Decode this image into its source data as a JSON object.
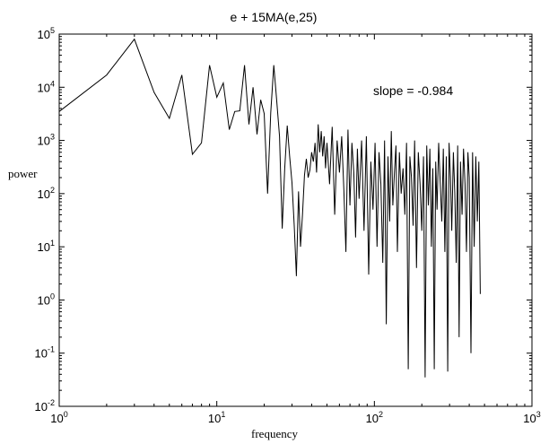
{
  "chart_data": {
    "type": "line",
    "title": "e + 15MA(e,25)",
    "xlabel": "frequency",
    "ylabel": "power",
    "xscale": "log",
    "yscale": "log",
    "xlim": [
      1,
      1000
    ],
    "ylim": [
      0.01,
      100000
    ],
    "grid": false,
    "annotation": "slope = -0.984",
    "x_ticks": [
      {
        "base": "10",
        "exp": "0"
      },
      {
        "base": "10",
        "exp": "1"
      },
      {
        "base": "10",
        "exp": "2"
      },
      {
        "base": "10",
        "exp": "3"
      }
    ],
    "y_ticks": [
      {
        "base": "10",
        "exp": "-2"
      },
      {
        "base": "10",
        "exp": "-1"
      },
      {
        "base": "10",
        "exp": "0"
      },
      {
        "base": "10",
        "exp": "1"
      },
      {
        "base": "10",
        "exp": "2"
      },
      {
        "base": "10",
        "exp": "3"
      },
      {
        "base": "10",
        "exp": "4"
      },
      {
        "base": "10",
        "exp": "5"
      }
    ],
    "x": [
      1,
      2,
      3,
      4,
      5,
      6,
      7,
      8,
      9,
      10,
      11,
      12,
      13,
      14,
      15,
      16,
      17,
      18,
      19,
      20,
      21,
      22,
      23,
      24,
      25,
      26,
      27,
      28,
      29,
      30,
      31,
      32,
      33,
      34,
      35,
      36,
      37,
      38,
      39,
      40,
      41,
      42,
      43,
      44,
      45,
      46,
      47,
      48,
      49,
      50,
      52,
      54,
      56,
      58,
      60,
      62,
      64,
      66,
      68,
      70,
      72,
      74,
      76,
      78,
      80,
      83,
      86,
      89,
      92,
      95,
      98,
      101,
      104,
      107,
      110,
      113,
      116,
      119,
      122,
      125,
      128,
      131,
      134,
      137,
      140,
      144,
      148,
      152,
      156,
      160,
      164,
      168,
      172,
      176,
      180,
      185,
      190,
      195,
      200,
      205,
      210,
      215,
      220,
      225,
      230,
      235,
      240,
      245,
      250,
      256,
      262,
      268,
      274,
      280,
      286,
      292,
      298,
      304,
      310,
      317,
      324,
      331,
      338,
      345,
      352,
      360,
      368,
      376,
      384,
      392,
      400,
      410,
      420,
      430,
      440,
      450,
      460,
      470
    ],
    "y": [
      3500,
      17000,
      80000,
      8000,
      2600,
      17000,
      550,
      900,
      26000,
      6500,
      12000,
      1600,
      3500,
      3600,
      26000,
      2000,
      10000,
      1300,
      5800,
      3200,
      100,
      3300,
      26000,
      5500,
      1200,
      22,
      300,
      1900,
      500,
      160,
      25,
      2.8,
      110,
      10,
      40,
      220,
      450,
      200,
      280,
      600,
      400,
      900,
      250,
      2000,
      600,
      1500,
      500,
      1200,
      300,
      900,
      150,
      1800,
      40,
      1000,
      250,
      1200,
      120,
      8,
      1600,
      60,
      900,
      250,
      15,
      700,
      80,
      1000,
      20,
      1200,
      3,
      400,
      50,
      900,
      10,
      600,
      150,
      5,
      1000,
      0.35,
      500,
      30,
      1500,
      60,
      250,
      800,
      8,
      600,
      100,
      300,
      40,
      900,
      0.05,
      500,
      200,
      25,
      1000,
      4,
      600,
      150,
      20,
      500,
      0.035,
      800,
      60,
      700,
      10,
      300,
      0.05,
      400,
      50,
      900,
      150,
      30,
      700,
      8,
      500,
      0.045,
      900,
      200,
      20,
      600,
      100,
      5,
      800,
      0.2,
      400,
      40,
      700,
      150,
      8,
      600,
      200,
      0.1,
      600,
      10,
      500,
      30,
      400,
      1.3
    ]
  }
}
